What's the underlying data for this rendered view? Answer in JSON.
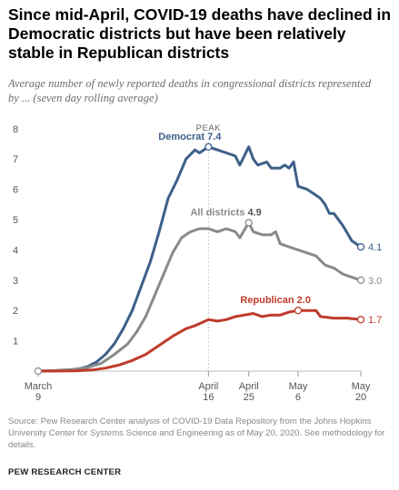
{
  "title": "Since mid-April, COVID-19 deaths have declined in Democratic districts but have been relatively stable in Republican districts",
  "subtitle": "Average number of newly reported deaths in congressional districts represented by ... (seven day rolling average)",
  "source": "Source: Pew Research Center analysis of COVID-19 Data Repository from the Johns Hopkins University Center for Systems Science and Engineering as of May 20, 2020. See methodology for details.",
  "brand": "PEW RESEARCH CENTER",
  "chart_data": {
    "type": "line",
    "title": "",
    "xlabel": "",
    "ylabel": "",
    "xlim": [
      "2020-03-09",
      "2020-05-20"
    ],
    "ylim": [
      0,
      8
    ],
    "yticks": [
      1,
      2,
      3,
      4,
      5,
      6,
      7,
      8
    ],
    "grid": false,
    "x_tick_labels": [
      {
        "x": "2020-03-09",
        "label": [
          "March",
          "9"
        ]
      },
      {
        "x": "2020-04-16",
        "label": [
          "April",
          "16"
        ]
      },
      {
        "x": "2020-04-25",
        "label": [
          "April",
          "25"
        ]
      },
      {
        "x": "2020-05-06",
        "label": [
          "May",
          "6"
        ]
      },
      {
        "x": "2020-05-20",
        "label": [
          "May",
          "20"
        ]
      }
    ],
    "annotations": {
      "peak_label": "PEAK",
      "peak_date": "2020-04-16"
    },
    "series": [
      {
        "name": "Democrat",
        "color": "#3d6089",
        "peak": {
          "x": "2020-04-16",
          "y": 7.4,
          "label": "7.4"
        },
        "end_label": "4.1",
        "points": [
          [
            "2020-03-09",
            0.0
          ],
          [
            "2020-03-12",
            0.01
          ],
          [
            "2020-03-15",
            0.03
          ],
          [
            "2020-03-18",
            0.07
          ],
          [
            "2020-03-20",
            0.15
          ],
          [
            "2020-03-22",
            0.3
          ],
          [
            "2020-03-24",
            0.55
          ],
          [
            "2020-03-26",
            0.9
          ],
          [
            "2020-03-28",
            1.4
          ],
          [
            "2020-03-30",
            2.0
          ],
          [
            "2020-04-01",
            2.8
          ],
          [
            "2020-04-03",
            3.6
          ],
          [
            "2020-04-05",
            4.6
          ],
          [
            "2020-04-07",
            5.7
          ],
          [
            "2020-04-09",
            6.3
          ],
          [
            "2020-04-11",
            7.0
          ],
          [
            "2020-04-13",
            7.3
          ],
          [
            "2020-04-14",
            7.2
          ],
          [
            "2020-04-16",
            7.4
          ],
          [
            "2020-04-18",
            7.3
          ],
          [
            "2020-04-20",
            7.2
          ],
          [
            "2020-04-22",
            7.1
          ],
          [
            "2020-04-23",
            6.8
          ],
          [
            "2020-04-25",
            7.4
          ],
          [
            "2020-04-26",
            7.0
          ],
          [
            "2020-04-27",
            6.8
          ],
          [
            "2020-04-29",
            6.9
          ],
          [
            "2020-04-30",
            6.7
          ],
          [
            "2020-05-02",
            6.7
          ],
          [
            "2020-05-03",
            6.8
          ],
          [
            "2020-05-04",
            6.7
          ],
          [
            "2020-05-05",
            6.9
          ],
          [
            "2020-05-06",
            6.1
          ],
          [
            "2020-05-08",
            6.0
          ],
          [
            "2020-05-09",
            5.9
          ],
          [
            "2020-05-11",
            5.7
          ],
          [
            "2020-05-12",
            5.5
          ],
          [
            "2020-05-13",
            5.2
          ],
          [
            "2020-05-14",
            5.2
          ],
          [
            "2020-05-16",
            4.8
          ],
          [
            "2020-05-18",
            4.3
          ],
          [
            "2020-05-20",
            4.1
          ]
        ]
      },
      {
        "name": "All districts",
        "color": "#8a8a8a",
        "peak": {
          "x": "2020-04-25",
          "y": 4.9,
          "label": "4.9"
        },
        "end_label": "3.0",
        "points": [
          [
            "2020-03-09",
            0.0
          ],
          [
            "2020-03-13",
            0.02
          ],
          [
            "2020-03-17",
            0.06
          ],
          [
            "2020-03-20",
            0.12
          ],
          [
            "2020-03-23",
            0.25
          ],
          [
            "2020-03-26",
            0.55
          ],
          [
            "2020-03-29",
            0.9
          ],
          [
            "2020-03-31",
            1.3
          ],
          [
            "2020-04-02",
            1.8
          ],
          [
            "2020-04-04",
            2.5
          ],
          [
            "2020-04-06",
            3.2
          ],
          [
            "2020-04-08",
            3.9
          ],
          [
            "2020-04-10",
            4.4
          ],
          [
            "2020-04-12",
            4.6
          ],
          [
            "2020-04-14",
            4.7
          ],
          [
            "2020-04-16",
            4.7
          ],
          [
            "2020-04-18",
            4.6
          ],
          [
            "2020-04-20",
            4.7
          ],
          [
            "2020-04-22",
            4.6
          ],
          [
            "2020-04-23",
            4.4
          ],
          [
            "2020-04-25",
            4.9
          ],
          [
            "2020-04-26",
            4.6
          ],
          [
            "2020-04-28",
            4.5
          ],
          [
            "2020-04-30",
            4.5
          ],
          [
            "2020-05-01",
            4.6
          ],
          [
            "2020-05-02",
            4.2
          ],
          [
            "2020-05-04",
            4.1
          ],
          [
            "2020-05-06",
            4.0
          ],
          [
            "2020-05-08",
            3.9
          ],
          [
            "2020-05-10",
            3.8
          ],
          [
            "2020-05-12",
            3.5
          ],
          [
            "2020-05-14",
            3.4
          ],
          [
            "2020-05-16",
            3.2
          ],
          [
            "2020-05-18",
            3.1
          ],
          [
            "2020-05-20",
            3.0
          ]
        ]
      },
      {
        "name": "Republican",
        "color": "#bf3b2b",
        "peak": {
          "x": "2020-05-06",
          "y": 2.0,
          "label": "2.0"
        },
        "end_label": "1.7",
        "points": [
          [
            "2020-03-09",
            0.0
          ],
          [
            "2020-03-17",
            0.01
          ],
          [
            "2020-03-21",
            0.04
          ],
          [
            "2020-03-24",
            0.1
          ],
          [
            "2020-03-27",
            0.2
          ],
          [
            "2020-03-30",
            0.35
          ],
          [
            "2020-04-02",
            0.55
          ],
          [
            "2020-04-05",
            0.85
          ],
          [
            "2020-04-08",
            1.15
          ],
          [
            "2020-04-11",
            1.4
          ],
          [
            "2020-04-13",
            1.5
          ],
          [
            "2020-04-16",
            1.7
          ],
          [
            "2020-04-18",
            1.65
          ],
          [
            "2020-04-20",
            1.7
          ],
          [
            "2020-04-22",
            1.8
          ],
          [
            "2020-04-24",
            1.85
          ],
          [
            "2020-04-26",
            1.9
          ],
          [
            "2020-04-28",
            1.8
          ],
          [
            "2020-04-30",
            1.85
          ],
          [
            "2020-05-02",
            1.85
          ],
          [
            "2020-05-04",
            1.95
          ],
          [
            "2020-05-06",
            2.0
          ],
          [
            "2020-05-08",
            2.0
          ],
          [
            "2020-05-10",
            2.0
          ],
          [
            "2020-05-11",
            1.8
          ],
          [
            "2020-05-14",
            1.75
          ],
          [
            "2020-05-17",
            1.75
          ],
          [
            "2020-05-20",
            1.7
          ]
        ]
      }
    ]
  }
}
